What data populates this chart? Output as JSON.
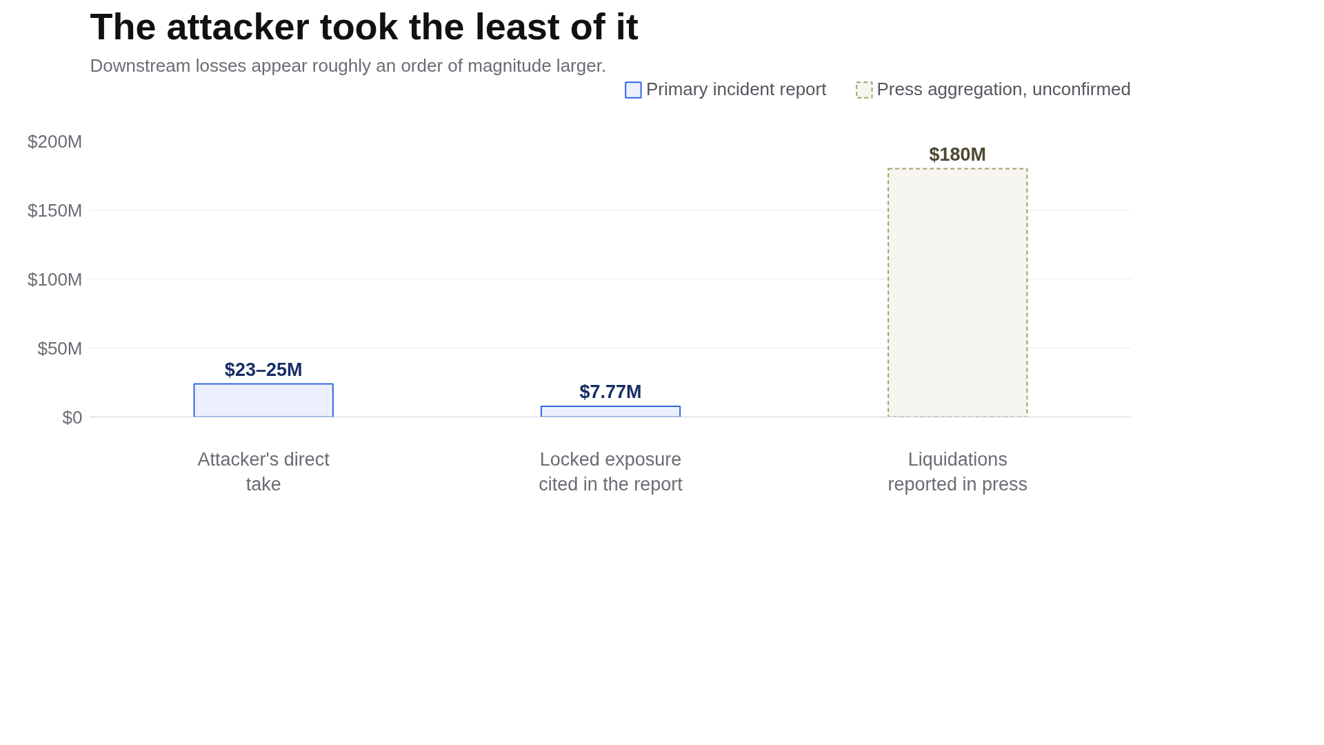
{
  "chart_data": {
    "type": "bar",
    "title": "The attacker took the least of it",
    "subtitle": "Downstream losses appear roughly an order of magnitude larger.",
    "categories": [
      "Attacker's direct take",
      "Locked exposure cited in the report",
      "Liquidations reported in press"
    ],
    "series": [
      {
        "name": "Primary incident report",
        "color": "#3366e0",
        "values": [
          24,
          7.77,
          null
        ],
        "value_labels": [
          "$23–25M",
          "$7.77M",
          null
        ],
        "line_style": "solid"
      },
      {
        "name": "Press aggregation, unconfirmed",
        "color": "#a89f6a",
        "values": [
          null,
          null,
          180
        ],
        "value_labels": [
          null,
          null,
          "$180M"
        ],
        "line_style": "dashed"
      }
    ],
    "ylim": [
      0,
      200
    ],
    "yticks": [
      {
        "value": 0,
        "label": "$0"
      },
      {
        "value": 50,
        "label": "$50M"
      },
      {
        "value": 100,
        "label": "$100M"
      },
      {
        "value": 150,
        "label": "$150M"
      },
      {
        "value": 200,
        "label": "$200M"
      }
    ],
    "grid": "y",
    "legend": "top right"
  }
}
